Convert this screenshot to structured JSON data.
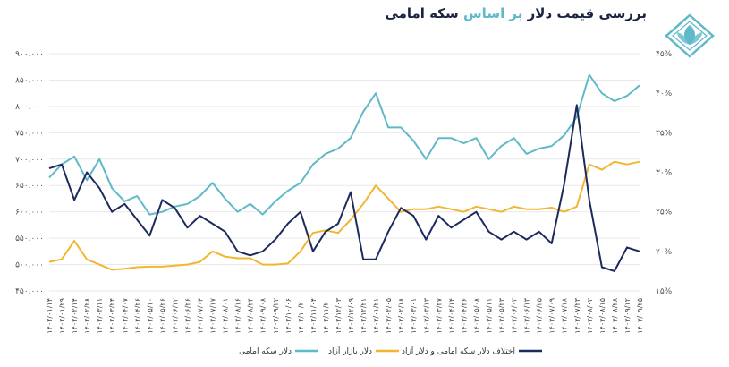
{
  "title": {
    "part1": "بررسی قیمت دلار",
    "part2": "بر اساس",
    "part3": "سکه امامی"
  },
  "colors": {
    "sekke": "#5fb9c9",
    "bazar": "#f2b630",
    "diff": "#1c2a5c",
    "logo": "#5fb9c9",
    "grid": "#e9e9e9"
  },
  "icons": {
    "logo": "lotus-logo-icon"
  },
  "chart_data": {
    "type": "line",
    "title": "بررسی قیمت دلار بر اساس سکه امامی",
    "y_left_ticks": [
      "۹۰۰،۰۰۰",
      "۸۵۰،۰۰۰",
      "۸۰۰،۰۰۰",
      "۷۵۰،۰۰۰",
      "۷۰۰،۰۰۰",
      "۶۵۰،۰۰۰",
      "۶۰۰،۰۰۰",
      "۵۵۰،۰۰۰",
      "۵۰۰،۰۰۰",
      "۴۵۰،۰۰۰"
    ],
    "y_right_ticks": [
      "۴۵%",
      "۴۰%",
      "۳۵%",
      "۳۰%",
      "۲۵%",
      "۲۰%",
      "۱۵%"
    ],
    "ylim_left": [
      450000,
      900000
    ],
    "ylim_right": [
      15,
      45
    ],
    "x_ticks": [
      "۱۴۰۲/۰۱/۱۴",
      "۱۴۰۲/۰۱/۲۹",
      "۱۴۰۲/۰۲/۱۴",
      "۱۴۰۲/۰۲/۲۸",
      "۱۴۰۲/۰۳/۱۱",
      "۱۴۰۲/۰۳/۲۴",
      "۱۴۰۲/۰۴/۰۷",
      "۱۴۰۲/۰۴/۲۶",
      "۱۴۰۲/۰۵/۱۰",
      "۱۴۰۲/۰۵/۲۶",
      "۱۴۰۲/۰۶/۱۲",
      "۱۴۰۲/۰۶/۲۶",
      "۱۴۰۲/۰۷/۰۴",
      "۱۴۰۲/۰۷/۱۷",
      "۱۴۰۲/۰۸/۰۱",
      "۱۴۰۲/۰۸/۱۶",
      "۱۴۰۲/۰۸/۲۴",
      "۱۴۰۲/۰۹/۰۸",
      "۱۴۰۲/۰۹/۲۲",
      "۱۴۰۲/۱۰/۰۶",
      "۱۴۰۲/۱۰/۲۰",
      "۱۴۰۲/۱۱/۰۴",
      "۱۴۰۲/۱۱/۲۰",
      "۱۴۰۲/۱۲/۰۳",
      "۱۴۰۲/۱۲/۰۹",
      "۱۴۰۲/۱۲/۲۱",
      "۱۴۰۳/۰۱/۲۱",
      "۱۴۰۳/۰۲/۰۵",
      "۱۴۰۳/۰۲/۱۸",
      "۱۴۰۳/۰۳/۰۱",
      "۱۴۰۳/۰۳/۱۳",
      "۱۴۰۳/۰۳/۲۷",
      "۱۴۰۳/۰۴/۱۴",
      "۱۴۰۳/۰۴/۲۶",
      "۱۴۰۳/۰۵/۰۸",
      "۱۴۰۳/۰۵/۱۱",
      "۱۴۰۳/۰۵/۲۳",
      "۱۴۰۳/۰۶/۰۳",
      "۱۴۰۳/۰۶/۱۳",
      "۱۴۰۳/۰۶/۲۵",
      "۱۴۰۳/۰۷/۰۹",
      "۱۴۰۳/۰۷/۱۸",
      "۱۴۰۳/۰۷/۲۳",
      "۱۴۰۳/۰۸/۰۲",
      "۱۴۰۳/۰۸/۱۵",
      "۱۴۰۳/۰۸/۲۸",
      "۱۴۰۳/۰۹/۱۲",
      "۱۴۰۳/۰۹/۲۵"
    ],
    "series": [
      {
        "name": "دلار سکه امامی",
        "axis": "left",
        "color": "#5fb9c9",
        "values": [
          665000,
          690000,
          705000,
          660000,
          700000,
          645000,
          620000,
          630000,
          595000,
          600000,
          610000,
          615000,
          630000,
          655000,
          625000,
          600000,
          615000,
          595000,
          620000,
          640000,
          655000,
          690000,
          710000,
          720000,
          740000,
          790000,
          825000,
          760000,
          760000,
          735000,
          700000,
          740000,
          740000,
          730000,
          740000,
          700000,
          725000,
          740000,
          710000,
          720000,
          725000,
          745000,
          780000,
          860000,
          825000,
          810000,
          820000,
          840000
        ]
      },
      {
        "name": "دلار بازار آزاد",
        "axis": "left",
        "color": "#f2b630",
        "values": [
          505000,
          510000,
          545000,
          510000,
          500000,
          490000,
          492000,
          495000,
          496000,
          496000,
          498000,
          500000,
          505000,
          525000,
          515000,
          512000,
          512000,
          500000,
          500000,
          502000,
          525000,
          560000,
          565000,
          560000,
          585000,
          615000,
          650000,
          625000,
          600000,
          605000,
          605000,
          610000,
          605000,
          600000,
          610000,
          605000,
          600000,
          610000,
          605000,
          605000,
          608000,
          600000,
          610000,
          690000,
          680000,
          695000,
          690000,
          695000
        ]
      },
      {
        "name": "اختلاف دلار سکه امامی و دلار آزاد",
        "axis": "right",
        "color": "#1c2a5c",
        "values": [
          30.5,
          31.0,
          26.5,
          30.0,
          28.0,
          25.0,
          26.0,
          24.0,
          22.0,
          26.5,
          25.5,
          23.0,
          24.5,
          23.5,
          22.5,
          20.0,
          19.5,
          20.0,
          21.5,
          23.5,
          25.0,
          20.0,
          22.5,
          23.5,
          27.5,
          19.0,
          19.0,
          22.5,
          25.5,
          24.5,
          21.5,
          24.5,
          23.0,
          24.0,
          25.0,
          22.5,
          21.5,
          22.5,
          21.5,
          22.5,
          21.0,
          28.5,
          38.5,
          26.5,
          18.0,
          17.5,
          20.5,
          20.0
        ]
      }
    ]
  }
}
